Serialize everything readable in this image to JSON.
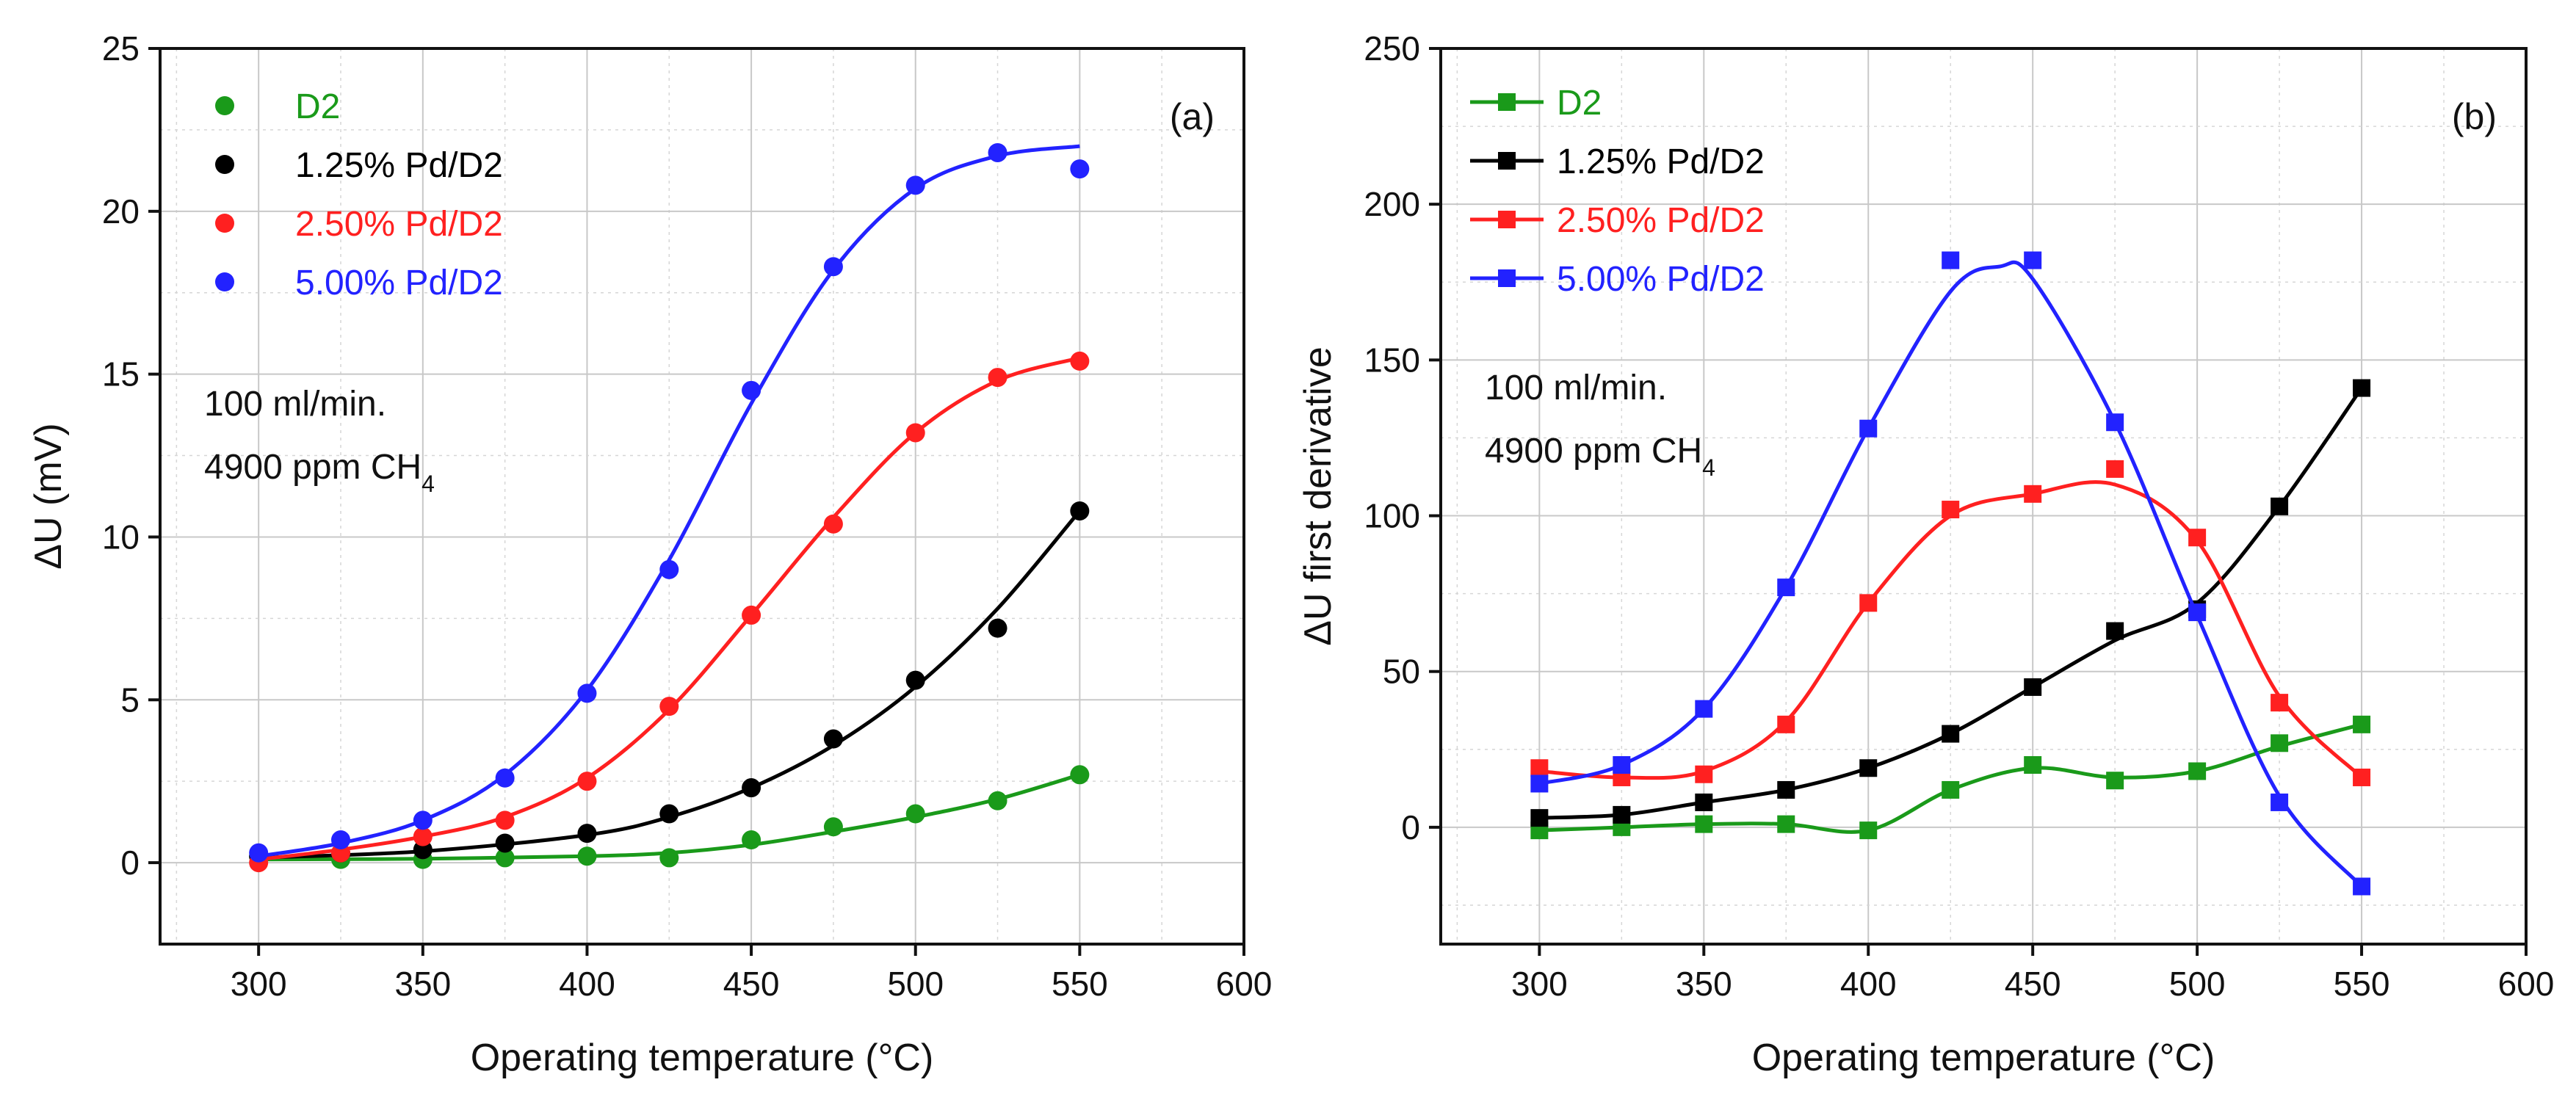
{
  "chart_data": [
    {
      "type": "line",
      "panel_label": "(a)",
      "xlabel": "Operating temperature (°C)",
      "ylabel": "ΔU (mV)",
      "xlim": [
        270,
        600
      ],
      "ylim": [
        -2.5,
        25
      ],
      "xticks": [
        300,
        350,
        400,
        450,
        500,
        550,
        600
      ],
      "yticks": [
        0,
        5,
        10,
        15,
        20,
        25
      ],
      "grid": true,
      "legend_position": "top-left",
      "annotations": [
        "100 ml/min.",
        "4900 ppm CH"
      ],
      "annotation_subscript": "4",
      "series": [
        {
          "name": "D2",
          "color": "#1a9a1a",
          "marker": "circle",
          "points": [
            [
              300,
              0.2
            ],
            [
              325,
              0.1
            ],
            [
              350,
              0.1
            ],
            [
              375,
              0.15
            ],
            [
              400,
              0.2
            ],
            [
              425,
              0.15
            ],
            [
              450,
              0.7
            ],
            [
              475,
              1.1
            ],
            [
              500,
              1.5
            ],
            [
              525,
              1.9
            ],
            [
              550,
              2.7
            ]
          ],
          "curve": [
            [
              300,
              0.1
            ],
            [
              350,
              0.12
            ],
            [
              400,
              0.2
            ],
            [
              425,
              0.3
            ],
            [
              450,
              0.55
            ],
            [
              475,
              0.95
            ],
            [
              500,
              1.4
            ],
            [
              525,
              1.95
            ],
            [
              550,
              2.7
            ]
          ]
        },
        {
          "name": "1.25% Pd/D2",
          "color": "#000000",
          "marker": "circle",
          "points": [
            [
              300,
              0.2
            ],
            [
              325,
              0.3
            ],
            [
              350,
              0.4
            ],
            [
              375,
              0.6
            ],
            [
              400,
              0.9
            ],
            [
              425,
              1.5
            ],
            [
              450,
              2.3
            ],
            [
              475,
              3.8
            ],
            [
              500,
              5.6
            ],
            [
              525,
              7.2
            ],
            [
              550,
              10.8
            ]
          ],
          "curve": [
            [
              300,
              0.15
            ],
            [
              350,
              0.35
            ],
            [
              400,
              0.85
            ],
            [
              425,
              1.4
            ],
            [
              450,
              2.3
            ],
            [
              475,
              3.6
            ],
            [
              500,
              5.4
            ],
            [
              525,
              7.8
            ],
            [
              550,
              10.8
            ]
          ]
        },
        {
          "name": "2.50% Pd/D2",
          "color": "#ff2020",
          "marker": "circle",
          "points": [
            [
              300,
              0.0
            ],
            [
              325,
              0.3
            ],
            [
              350,
              0.8
            ],
            [
              375,
              1.3
            ],
            [
              400,
              2.5
            ],
            [
              425,
              4.8
            ],
            [
              450,
              7.6
            ],
            [
              475,
              10.4
            ],
            [
              500,
              13.2
            ],
            [
              525,
              14.9
            ],
            [
              550,
              15.4
            ]
          ],
          "curve": [
            [
              300,
              0.1
            ],
            [
              325,
              0.4
            ],
            [
              350,
              0.8
            ],
            [
              375,
              1.4
            ],
            [
              400,
              2.6
            ],
            [
              425,
              4.7
            ],
            [
              450,
              7.6
            ],
            [
              475,
              10.6
            ],
            [
              500,
              13.2
            ],
            [
              525,
              14.8
            ],
            [
              550,
              15.5
            ]
          ]
        },
        {
          "name": "5.00% Pd/D2",
          "color": "#2222ff",
          "marker": "circle",
          "points": [
            [
              300,
              0.3
            ],
            [
              325,
              0.7
            ],
            [
              350,
              1.3
            ],
            [
              375,
              2.6
            ],
            [
              400,
              5.2
            ],
            [
              425,
              9.0
            ],
            [
              450,
              14.5
            ],
            [
              475,
              18.3
            ],
            [
              500,
              20.8
            ],
            [
              525,
              21.8
            ],
            [
              550,
              21.3
            ]
          ],
          "curve": [
            [
              300,
              0.2
            ],
            [
              325,
              0.6
            ],
            [
              350,
              1.3
            ],
            [
              375,
              2.7
            ],
            [
              400,
              5.3
            ],
            [
              425,
              9.3
            ],
            [
              450,
              14.1
            ],
            [
              475,
              18.2
            ],
            [
              500,
              20.7
            ],
            [
              525,
              21.7
            ],
            [
              550,
              22.0
            ]
          ]
        }
      ]
    },
    {
      "type": "line",
      "panel_label": "(b)",
      "xlabel": "Operating temperature (°C)",
      "ylabel": "ΔU first derivative",
      "xlim": [
        270,
        600
      ],
      "ylim": [
        -37.5,
        250
      ],
      "xticks": [
        300,
        350,
        400,
        450,
        500,
        550,
        600
      ],
      "yticks": [
        0,
        50,
        100,
        150,
        200,
        250
      ],
      "grid": true,
      "legend_position": "top-left",
      "annotations": [
        "100 ml/min.",
        "4900 ppm CH"
      ],
      "annotation_subscript": "4",
      "series": [
        {
          "name": "D2",
          "color": "#1a9a1a",
          "marker": "square",
          "points": [
            [
              300,
              -1
            ],
            [
              325,
              0
            ],
            [
              350,
              1
            ],
            [
              375,
              1
            ],
            [
              400,
              -1
            ],
            [
              425,
              12
            ],
            [
              450,
              20
            ],
            [
              475,
              15
            ],
            [
              500,
              18
            ],
            [
              525,
              27
            ],
            [
              550,
              33
            ]
          ],
          "curve": [
            [
              300,
              -1
            ],
            [
              325,
              0
            ],
            [
              350,
              1
            ],
            [
              375,
              1
            ],
            [
              400,
              -1
            ],
            [
              425,
              12
            ],
            [
              450,
              19
            ],
            [
              475,
              16
            ],
            [
              500,
              18
            ],
            [
              525,
              26
            ],
            [
              550,
              33
            ]
          ]
        },
        {
          "name": "1.25% Pd/D2",
          "color": "#000000",
          "marker": "square",
          "points": [
            [
              300,
              3
            ],
            [
              325,
              4
            ],
            [
              350,
              8
            ],
            [
              375,
              12
            ],
            [
              400,
              19
            ],
            [
              425,
              30
            ],
            [
              450,
              45
            ],
            [
              475,
              63
            ],
            [
              500,
              70
            ],
            [
              525,
              103
            ],
            [
              550,
              141
            ]
          ],
          "curve": [
            [
              300,
              3
            ],
            [
              325,
              4
            ],
            [
              350,
              8
            ],
            [
              375,
              12
            ],
            [
              400,
              19
            ],
            [
              425,
              30
            ],
            [
              450,
              45
            ],
            [
              475,
              60
            ],
            [
              500,
              72
            ],
            [
              525,
              103
            ],
            [
              550,
              141
            ]
          ]
        },
        {
          "name": "2.50% Pd/D2",
          "color": "#ff2020",
          "marker": "square",
          "points": [
            [
              300,
              19
            ],
            [
              325,
              16
            ],
            [
              350,
              17
            ],
            [
              375,
              33
            ],
            [
              400,
              72
            ],
            [
              425,
              102
            ],
            [
              450,
              107
            ],
            [
              475,
              115
            ],
            [
              500,
              93
            ],
            [
              525,
              40
            ],
            [
              550,
              16
            ]
          ],
          "curve": [
            [
              300,
              18
            ],
            [
              325,
              16
            ],
            [
              350,
              18
            ],
            [
              375,
              34
            ],
            [
              400,
              72
            ],
            [
              425,
              100
            ],
            [
              450,
              107
            ],
            [
              475,
              110
            ],
            [
              500,
              92
            ],
            [
              525,
              42
            ],
            [
              550,
              16
            ]
          ]
        },
        {
          "name": "5.00% Pd/D2",
          "color": "#2222ff",
          "marker": "square",
          "points": [
            [
              300,
              14
            ],
            [
              325,
              20
            ],
            [
              350,
              38
            ],
            [
              375,
              77
            ],
            [
              400,
              128
            ],
            [
              425,
              182
            ],
            [
              450,
              182
            ],
            [
              475,
              130
            ],
            [
              500,
              69
            ],
            [
              525,
              8
            ],
            [
              550,
              -19
            ]
          ],
          "curve": [
            [
              300,
              14
            ],
            [
              325,
              20
            ],
            [
              350,
              38
            ],
            [
              375,
              77
            ],
            [
              400,
              128
            ],
            [
              425,
              172
            ],
            [
              440,
              180
            ],
            [
              450,
              176
            ],
            [
              475,
              130
            ],
            [
              500,
              68
            ],
            [
              525,
              10
            ],
            [
              550,
              -19
            ]
          ]
        }
      ]
    }
  ]
}
